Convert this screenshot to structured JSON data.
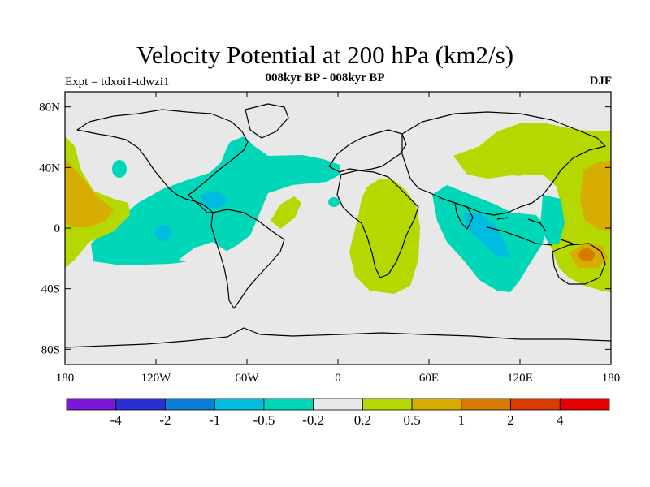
{
  "title": "Velocity Potential at 200 hPa (km2/s)",
  "subtitle": "008kyr BP - 008kyr BP",
  "experiment": "Expt = tdxoi1-tdwzi1",
  "season": "DJF",
  "lat_ticks": [
    {
      "lat": 80,
      "label": "80N"
    },
    {
      "lat": 40,
      "label": "40N"
    },
    {
      "lat": 0,
      "label": "0"
    },
    {
      "lat": -40,
      "label": "40S"
    },
    {
      "lat": -80,
      "label": "80S"
    }
  ],
  "lon_ticks": [
    {
      "lon": -180,
      "label": "180"
    },
    {
      "lon": -120,
      "label": "120W"
    },
    {
      "lon": -60,
      "label": "60W"
    },
    {
      "lon": 0,
      "label": "0"
    },
    {
      "lon": 60,
      "label": "60E"
    },
    {
      "lon": 120,
      "label": "120E"
    },
    {
      "lon": 180,
      "label": "180"
    }
  ],
  "colorbar": {
    "colors": [
      "#7a17d8",
      "#2a2fd5",
      "#0a7fd5",
      "#00bde0",
      "#00d7b8",
      "#e8e8e8",
      "#b4d800",
      "#d6ad00",
      "#d87a00",
      "#dc3b00",
      "#e80000"
    ],
    "labels": [
      "-4",
      "-2",
      "-1",
      "-0.5",
      "-0.2",
      "0.2",
      "0.5",
      "1",
      "2",
      "4"
    ]
  },
  "colors": {
    "background": "#e8e8e8",
    "neg_weak": "#00d7b8",
    "neg_mod": "#00bde0",
    "pos_weak": "#b4d800",
    "pos_mod": "#d6ad00",
    "pos_strong": "#d87a00"
  }
}
